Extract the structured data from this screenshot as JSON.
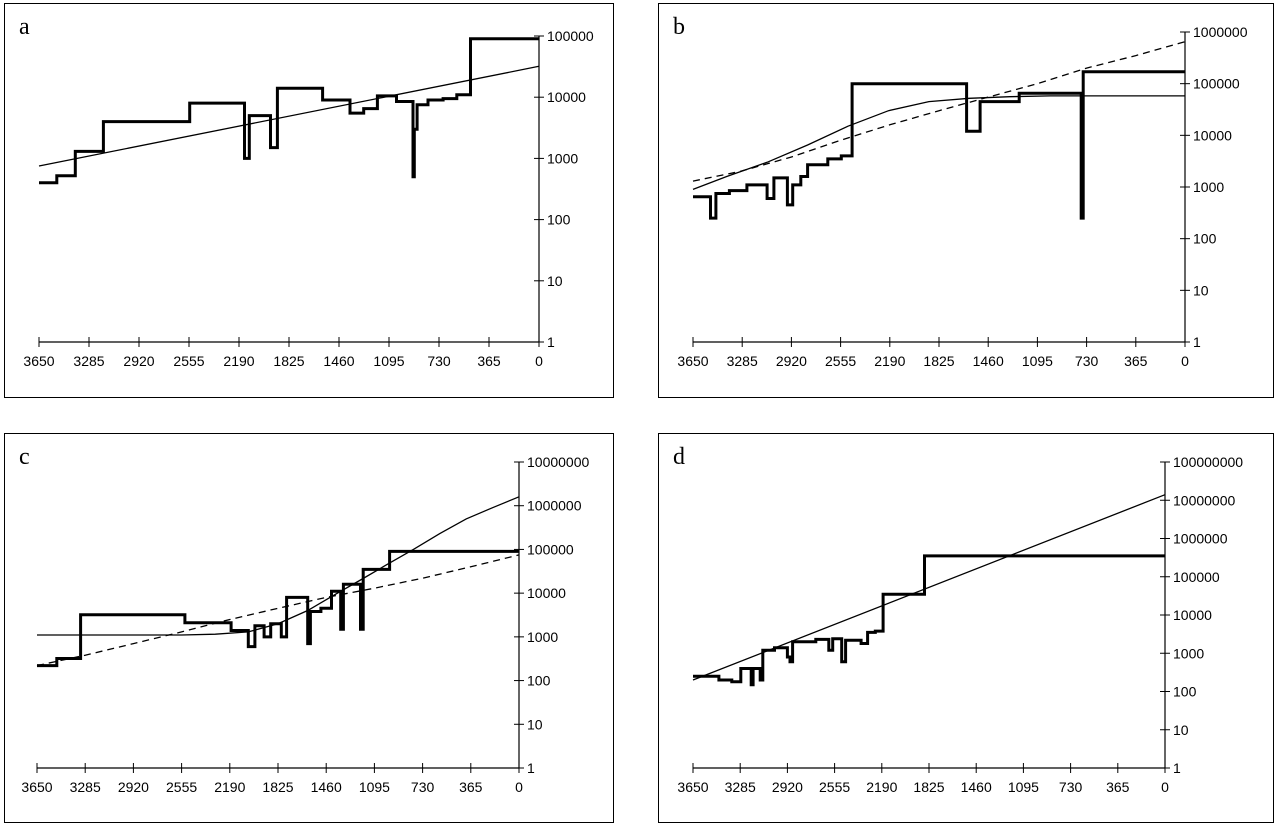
{
  "chart_data": [
    {
      "type": "line",
      "panel_label": "a",
      "xlim": [
        3650,
        0
      ],
      "x_ticks": [
        "3650",
        "3285",
        "2920",
        "2555",
        "2190",
        "1825",
        "1460",
        "1095",
        "730",
        "365",
        "0"
      ],
      "y_scale": "log",
      "ylim": [
        1,
        100000
      ],
      "y_ticks": [
        "1",
        "10",
        "100",
        "1000",
        "10000",
        "100000"
      ],
      "series": [
        {
          "style": "step-thick",
          "points": [
            [
              3650,
              400
            ],
            [
              3520,
              400
            ],
            [
              3520,
              520
            ],
            [
              3385,
              520
            ],
            [
              3385,
              1300
            ],
            [
              3180,
              1300
            ],
            [
              3180,
              4000
            ],
            [
              2550,
              4000
            ],
            [
              2550,
              8000
            ],
            [
              2150,
              8000
            ],
            [
              2150,
              1000
            ],
            [
              2115,
              1000
            ],
            [
              2115,
              5000
            ],
            [
              1960,
              5000
            ],
            [
              1960,
              1500
            ],
            [
              1910,
              1500
            ],
            [
              1910,
              14000
            ],
            [
              1580,
              14000
            ],
            [
              1580,
              9000
            ],
            [
              1380,
              9000
            ],
            [
              1380,
              5500
            ],
            [
              1280,
              5500
            ],
            [
              1280,
              6500
            ],
            [
              1180,
              6500
            ],
            [
              1180,
              10500
            ],
            [
              1040,
              10500
            ],
            [
              1040,
              8500
            ],
            [
              920,
              8500
            ],
            [
              920,
              500
            ],
            [
              910,
              500
            ],
            [
              910,
              3000
            ],
            [
              890,
              3000
            ],
            [
              890,
              7500
            ],
            [
              810,
              7500
            ],
            [
              810,
              9000
            ],
            [
              700,
              9000
            ],
            [
              700,
              9500
            ],
            [
              600,
              9500
            ],
            [
              600,
              11000
            ],
            [
              500,
              11000
            ],
            [
              500,
              90000
            ],
            [
              0,
              90000
            ]
          ]
        },
        {
          "style": "thin",
          "points": [
            [
              3650,
              750
            ],
            [
              0,
              32000
            ]
          ]
        }
      ]
    },
    {
      "type": "line",
      "panel_label": "b",
      "xlim": [
        3650,
        0
      ],
      "x_ticks": [
        "3650",
        "3285",
        "2920",
        "2555",
        "2190",
        "1825",
        "1460",
        "1095",
        "730",
        "365",
        "0"
      ],
      "y_scale": "log",
      "ylim": [
        1,
        1000000
      ],
      "y_ticks": [
        "1",
        "10",
        "100",
        "1000",
        "10000",
        "100000",
        "1000000"
      ],
      "series": [
        {
          "style": "step-thick",
          "points": [
            [
              3650,
              650
            ],
            [
              3520,
              650
            ],
            [
              3520,
              250
            ],
            [
              3480,
              250
            ],
            [
              3480,
              750
            ],
            [
              3380,
              750
            ],
            [
              3380,
              850
            ],
            [
              3250,
              850
            ],
            [
              3250,
              1100
            ],
            [
              3100,
              1100
            ],
            [
              3100,
              600
            ],
            [
              3050,
              600
            ],
            [
              3050,
              1500
            ],
            [
              2950,
              1500
            ],
            [
              2950,
              450
            ],
            [
              2910,
              450
            ],
            [
              2910,
              1100
            ],
            [
              2850,
              1100
            ],
            [
              2850,
              1600
            ],
            [
              2800,
              1600
            ],
            [
              2800,
              2700
            ],
            [
              2650,
              2700
            ],
            [
              2650,
              3500
            ],
            [
              2550,
              3500
            ],
            [
              2550,
              4000
            ],
            [
              2470,
              4000
            ],
            [
              2470,
              100000
            ],
            [
              1620,
              100000
            ],
            [
              1620,
              12000
            ],
            [
              1520,
              12000
            ],
            [
              1520,
              45000
            ],
            [
              1230,
              45000
            ],
            [
              1230,
              65000
            ],
            [
              770,
              65000
            ],
            [
              770,
              250
            ],
            [
              755,
              250
            ],
            [
              755,
              170000
            ],
            [
              0,
              170000
            ]
          ]
        },
        {
          "style": "thin",
          "points": [
            [
              3650,
              900
            ],
            [
              3400,
              1600
            ],
            [
              3100,
              3000
            ],
            [
              2800,
              6500
            ],
            [
              2500,
              15000
            ],
            [
              2200,
              30000
            ],
            [
              1900,
              45000
            ],
            [
              1600,
              52000
            ],
            [
              1300,
              56000
            ],
            [
              1000,
              58000
            ],
            [
              700,
              58000
            ],
            [
              0,
              58000
            ]
          ]
        },
        {
          "style": "dashed",
          "points": [
            [
              3650,
              1300
            ],
            [
              3300,
              2000
            ],
            [
              2920,
              3800
            ],
            [
              2555,
              8000
            ],
            [
              2190,
              16000
            ],
            [
              1825,
              30000
            ],
            [
              1460,
              55000
            ],
            [
              1095,
              100000
            ],
            [
              730,
              200000
            ],
            [
              365,
              350000
            ],
            [
              0,
              650000
            ]
          ]
        }
      ]
    },
    {
      "type": "line",
      "panel_label": "c",
      "xlim": [
        3650,
        0
      ],
      "x_ticks": [
        "3650",
        "3285",
        "2920",
        "2555",
        "2190",
        "1825",
        "1460",
        "1095",
        "730",
        "365",
        "0"
      ],
      "y_scale": "log",
      "ylim": [
        1,
        10000000
      ],
      "y_ticks": [
        "1",
        "10",
        "100",
        "1000",
        "10000",
        "100000",
        "1000000",
        "10000000"
      ],
      "series": [
        {
          "style": "step-thick",
          "points": [
            [
              3650,
              220
            ],
            [
              3500,
              220
            ],
            [
              3500,
              320
            ],
            [
              3320,
              320
            ],
            [
              3320,
              3200
            ],
            [
              2530,
              3200
            ],
            [
              2530,
              2100
            ],
            [
              2180,
              2100
            ],
            [
              2180,
              1400
            ],
            [
              2050,
              1400
            ],
            [
              2050,
              600
            ],
            [
              2000,
              600
            ],
            [
              2000,
              1800
            ],
            [
              1930,
              1800
            ],
            [
              1930,
              1000
            ],
            [
              1880,
              1000
            ],
            [
              1880,
              2000
            ],
            [
              1800,
              2000
            ],
            [
              1800,
              1000
            ],
            [
              1760,
              1000
            ],
            [
              1760,
              8000
            ],
            [
              1600,
              8000
            ],
            [
              1600,
              700
            ],
            [
              1580,
              700
            ],
            [
              1580,
              3800
            ],
            [
              1500,
              3800
            ],
            [
              1500,
              4500
            ],
            [
              1420,
              4500
            ],
            [
              1420,
              11000
            ],
            [
              1350,
              11000
            ],
            [
              1350,
              1500
            ],
            [
              1330,
              1500
            ],
            [
              1330,
              16000
            ],
            [
              1200,
              16000
            ],
            [
              1200,
              1500
            ],
            [
              1180,
              1500
            ],
            [
              1180,
              35000
            ],
            [
              980,
              35000
            ],
            [
              980,
              90000
            ],
            [
              0,
              90000
            ]
          ]
        },
        {
          "style": "thin",
          "points": [
            [
              3650,
              1100
            ],
            [
              3300,
              1100
            ],
            [
              2900,
              1100
            ],
            [
              2555,
              1100
            ],
            [
              2300,
              1150
            ],
            [
              2050,
              1300
            ],
            [
              1825,
              2000
            ],
            [
              1600,
              4000
            ],
            [
              1400,
              9000
            ],
            [
              1200,
              20000
            ],
            [
              1000,
              45000
            ],
            [
              800,
              100000
            ],
            [
              600,
              230000
            ],
            [
              400,
              500000
            ],
            [
              200,
              900000
            ],
            [
              0,
              1600000
            ]
          ]
        },
        {
          "style": "dashed",
          "points": [
            [
              3650,
              220
            ],
            [
              3285,
              380
            ],
            [
              2920,
              700
            ],
            [
              2555,
              1300
            ],
            [
              2190,
              2500
            ],
            [
              1825,
              4500
            ],
            [
              1460,
              8000
            ],
            [
              1095,
              13000
            ],
            [
              730,
              22000
            ],
            [
              365,
              40000
            ],
            [
              0,
              75000
            ]
          ]
        }
      ]
    },
    {
      "type": "line",
      "panel_label": "d",
      "xlim": [
        3650,
        0
      ],
      "x_ticks": [
        "3650",
        "3285",
        "2920",
        "2555",
        "2190",
        "1825",
        "1460",
        "1095",
        "730",
        "365",
        "0"
      ],
      "y_scale": "log",
      "ylim": [
        1,
        100000000
      ],
      "y_ticks": [
        "1",
        "10",
        "100",
        "1000",
        "10000",
        "100000",
        "1000000",
        "10000000",
        "100000000"
      ],
      "series": [
        {
          "style": "step-thick",
          "points": [
            [
              3650,
              250
            ],
            [
              3450,
              250
            ],
            [
              3450,
              200
            ],
            [
              3350,
              200
            ],
            [
              3350,
              180
            ],
            [
              3280,
              180
            ],
            [
              3280,
              400
            ],
            [
              3200,
              400
            ],
            [
              3200,
              150
            ],
            [
              3185,
              150
            ],
            [
              3185,
              400
            ],
            [
              3130,
              400
            ],
            [
              3130,
              200
            ],
            [
              3110,
              200
            ],
            [
              3110,
              1200
            ],
            [
              3020,
              1200
            ],
            [
              3020,
              1400
            ],
            [
              2920,
              1400
            ],
            [
              2920,
              800
            ],
            [
              2900,
              800
            ],
            [
              2900,
              600
            ],
            [
              2880,
              600
            ],
            [
              2880,
              2000
            ],
            [
              2700,
              2000
            ],
            [
              2700,
              2300
            ],
            [
              2600,
              2300
            ],
            [
              2600,
              1200
            ],
            [
              2570,
              1200
            ],
            [
              2570,
              2400
            ],
            [
              2500,
              2400
            ],
            [
              2500,
              600
            ],
            [
              2470,
              600
            ],
            [
              2470,
              2200
            ],
            [
              2350,
              2200
            ],
            [
              2350,
              1800
            ],
            [
              2300,
              1800
            ],
            [
              2300,
              3500
            ],
            [
              2240,
              3500
            ],
            [
              2240,
              3800
            ],
            [
              2180,
              3800
            ],
            [
              2180,
              35000
            ],
            [
              1860,
              35000
            ],
            [
              1860,
              350000
            ],
            [
              0,
              350000
            ]
          ]
        },
        {
          "style": "thin",
          "points": [
            [
              3650,
              200
            ],
            [
              0,
              14000000
            ]
          ]
        }
      ]
    }
  ]
}
